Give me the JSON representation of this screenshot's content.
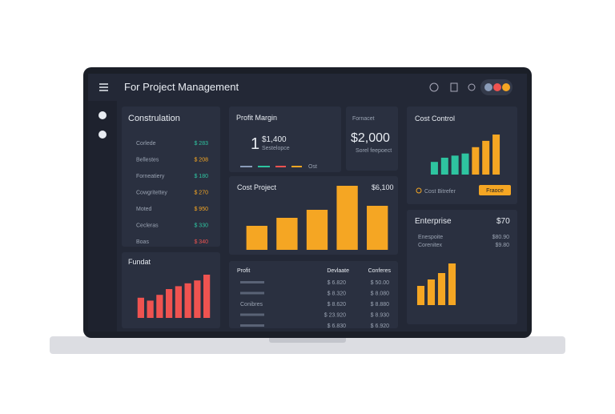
{
  "header": {
    "title": "For Project Management"
  },
  "construlation": {
    "title": "Construlation",
    "rows": [
      [
        "Corlede",
        "$ 283"
      ],
      [
        "Bellestes",
        "$ 208"
      ],
      [
        "Forneatiery",
        "$ 180"
      ],
      [
        "Cowgritettey",
        "$ 270"
      ],
      [
        "Moted",
        "$ 950"
      ],
      [
        "Cecleras",
        "$ 330"
      ],
      [
        "Boas",
        "$ 340"
      ]
    ],
    "colors": [
      "#2ec4a0",
      "#f5a623",
      "#2ec4a0",
      "#f5a623",
      "#f5a623",
      "#2ec4a0",
      "#ef5350"
    ]
  },
  "profit_margin": {
    "title": "Profit Margin",
    "big": "1",
    "value": "$1,400",
    "caption": "Sestelopce",
    "legend": "Ost"
  },
  "card": {
    "label": "Fornacet",
    "value": "$2,000",
    "caption": "Sorel feepoect"
  },
  "cost_control": {
    "title": "Cost Control",
    "bars": [
      3,
      4,
      4.5,
      5,
      6.5,
      8,
      9.5
    ],
    "bar_colors": [
      "#2ec4a0",
      "#2ec4a0",
      "#2ec4a0",
      "#2ec4a0",
      "#f5a623",
      "#f5a623",
      "#f5a623"
    ],
    "legend": "Cost Bitrefer",
    "button": "Fraoce"
  },
  "cost_project": {
    "title": "Cost Project",
    "value": "$6,100",
    "bars": [
      3,
      4,
      5,
      8,
      5.5
    ],
    "color": "#f5a623"
  },
  "fundat": {
    "title": "Fundat",
    "bars": [
      3.5,
      3,
      4,
      5,
      5.5,
      6,
      6.5,
      7.5
    ],
    "color": "#ef5350"
  },
  "table": {
    "headers": [
      "Profit",
      "Devlaate",
      "Conferes"
    ],
    "rows": [
      {
        "cells": [
          "$ 6.820",
          "$ 50.00"
        ]
      },
      {
        "cells": [
          "$ 8.320",
          "$ 8.080"
        ]
      },
      {
        "label": "Conibres",
        "cells": [
          "$ 8.620",
          "$ 8.880"
        ]
      },
      {
        "cells": [
          "$ 23.920",
          "$ 8.930"
        ]
      },
      {
        "cells": [
          "$ 6.830",
          "$ 6.920"
        ]
      }
    ]
  },
  "enterprise": {
    "title": "Enterprise",
    "value": "$70",
    "rows": [
      [
        "Enespoite",
        "$80.90"
      ],
      [
        "Corenitex",
        "$9.80"
      ]
    ],
    "bars": [
      3,
      4,
      5,
      6.5
    ],
    "color": "#f5a623"
  }
}
